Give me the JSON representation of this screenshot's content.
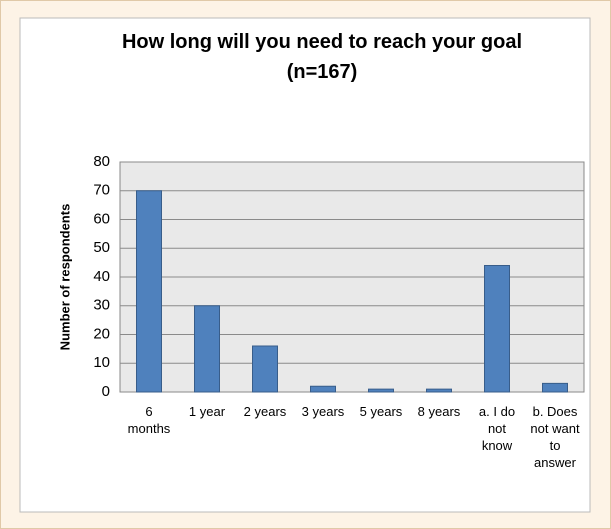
{
  "chart_data": {
    "type": "bar",
    "title": "How long will you need to reach your goal (n=167)",
    "y_label": "Number of respondents",
    "categories": [
      "6 months",
      "1 year",
      "2 years",
      "3 years",
      "5 years",
      "8 years",
      "a. I do not know",
      "b. Does not want to answer"
    ],
    "values": [
      70,
      30,
      16,
      2,
      1,
      1,
      44,
      3
    ],
    "color": "#4f81bd",
    "ylim": [
      0,
      80
    ],
    "yticks": [
      0,
      10,
      20,
      30,
      40,
      50,
      60,
      70,
      80
    ],
    "grid": true
  }
}
